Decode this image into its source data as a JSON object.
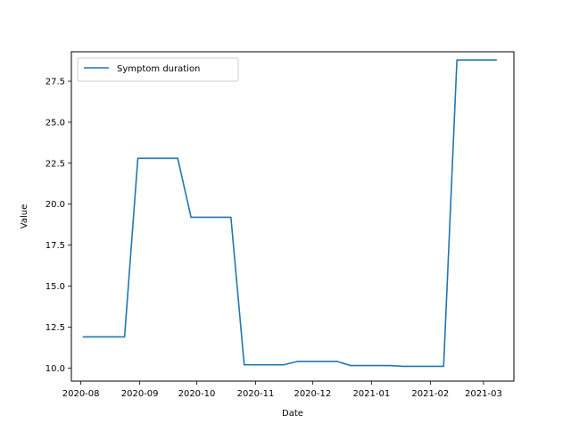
{
  "chart_data": {
    "type": "line",
    "title": "",
    "xlabel": "Date",
    "ylabel": "Value",
    "xlim": [
      "2020-07-27",
      "2021-03-17"
    ],
    "ylim": [
      9.2,
      29.3
    ],
    "grid": false,
    "legend_position": "top-left",
    "x_ticks": [
      "2020-08-01",
      "2020-09-01",
      "2020-10-01",
      "2020-11-01",
      "2020-12-01",
      "2021-01-01",
      "2021-02-01",
      "2021-03-01"
    ],
    "x_tick_labels": [
      "2020-08",
      "2020-09",
      "2020-10",
      "2020-11",
      "2020-12",
      "2021-01",
      "2021-02",
      "2021-03"
    ],
    "y_ticks": [
      10.0,
      12.5,
      15.0,
      17.5,
      20.0,
      22.5,
      25.0,
      27.5
    ],
    "y_tick_labels": [
      "10.0",
      "12.5",
      "15.0",
      "17.5",
      "20.0",
      "22.5",
      "25.0",
      "27.5"
    ],
    "series": [
      {
        "name": "Symptom duration",
        "color": "#1f77b4",
        "x": [
          "2020-08-02",
          "2020-08-24",
          "2020-08-31",
          "2020-09-21",
          "2020-09-28",
          "2020-10-19",
          "2020-10-26",
          "2020-11-16",
          "2020-11-23",
          "2020-12-14",
          "2020-12-21",
          "2021-01-11",
          "2021-01-18",
          "2021-02-08",
          "2021-02-15",
          "2021-03-08"
        ],
        "values": [
          11.9,
          11.9,
          22.8,
          22.8,
          19.2,
          19.2,
          10.2,
          10.2,
          10.4,
          10.4,
          10.15,
          10.15,
          10.1,
          10.1,
          28.8,
          28.8
        ]
      }
    ]
  }
}
